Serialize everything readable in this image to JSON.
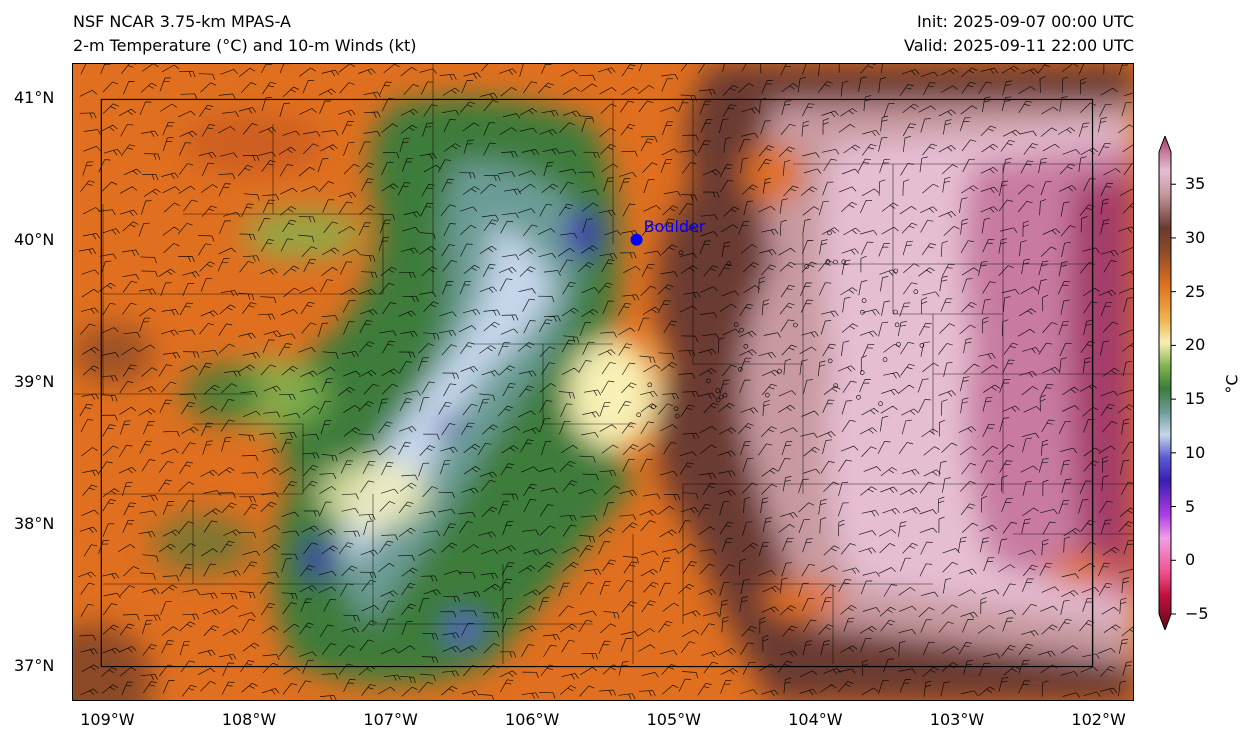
{
  "header": {
    "model": "NSF NCAR 3.75-km MPAS-A",
    "field": "2-m Temperature (°C) and 10-m Winds (kt)",
    "init": "Init: 2025-09-07 00:00 UTC",
    "valid": "Valid: 2025-09-11 22:00 UTC"
  },
  "map": {
    "extent": {
      "lon_min": -109.25,
      "lon_max": -101.75,
      "lat_min": 36.75,
      "lat_max": 41.25
    },
    "lat_ticks": [
      {
        "lat": 41,
        "label": "41°N"
      },
      {
        "lat": 40,
        "label": "40°N"
      },
      {
        "lat": 39,
        "label": "39°N"
      },
      {
        "lat": 38,
        "label": "38°N"
      },
      {
        "lat": 37,
        "label": "37°N"
      }
    ],
    "lon_ticks": [
      {
        "lon": -109,
        "label": "109°W"
      },
      {
        "lon": -108,
        "label": "108°W"
      },
      {
        "lon": -107,
        "label": "107°W"
      },
      {
        "lon": -106,
        "label": "106°W"
      },
      {
        "lon": -105,
        "label": "105°W"
      },
      {
        "lon": -104,
        "label": "104°W"
      },
      {
        "lon": -103,
        "label": "103°W"
      },
      {
        "lon": -102,
        "label": "102°W"
      }
    ],
    "marker": {
      "name": "Boulder",
      "lat": 40.01,
      "lon": -105.27,
      "color": "#0000ff"
    },
    "state_boundary": {
      "lon_west": -109.05,
      "lon_east": -102.05,
      "lat_south": 37.0,
      "lat_north": 41.0
    }
  },
  "colorbar": {
    "units": "°C",
    "min": -5,
    "max": 38,
    "ticks": [
      {
        "value": 35,
        "label": "35"
      },
      {
        "value": 30,
        "label": "30"
      },
      {
        "value": 25,
        "label": "25"
      },
      {
        "value": 20,
        "label": "20"
      },
      {
        "value": 15,
        "label": "15"
      },
      {
        "value": 10,
        "label": "10"
      },
      {
        "value": 5,
        "label": "5"
      },
      {
        "value": 0,
        "label": "0"
      },
      {
        "value": -5,
        "label": "−5"
      }
    ],
    "stops": [
      {
        "value": -5,
        "color": "#5e0a1c"
      },
      {
        "value": -2,
        "color": "#c20f3c"
      },
      {
        "value": 0,
        "color": "#f0508c"
      },
      {
        "value": 3,
        "color": "#f0a0e6"
      },
      {
        "value": 5,
        "color": "#b03ce6"
      },
      {
        "value": 8,
        "color": "#3a1eb4"
      },
      {
        "value": 10,
        "color": "#5a5ad2"
      },
      {
        "value": 12,
        "color": "#c6d7ec"
      },
      {
        "value": 14,
        "color": "#6c9c96"
      },
      {
        "value": 16,
        "color": "#3c7c3a"
      },
      {
        "value": 18,
        "color": "#82b450"
      },
      {
        "value": 20,
        "color": "#f8f0b4"
      },
      {
        "value": 22,
        "color": "#f0b450"
      },
      {
        "value": 25,
        "color": "#e07020"
      },
      {
        "value": 28,
        "color": "#8c4a28"
      },
      {
        "value": 30,
        "color": "#6a3a30"
      },
      {
        "value": 33,
        "color": "#c89aa0"
      },
      {
        "value": 35,
        "color": "#e6bed2"
      },
      {
        "value": 38,
        "color": "#a43c6a"
      }
    ]
  }
}
